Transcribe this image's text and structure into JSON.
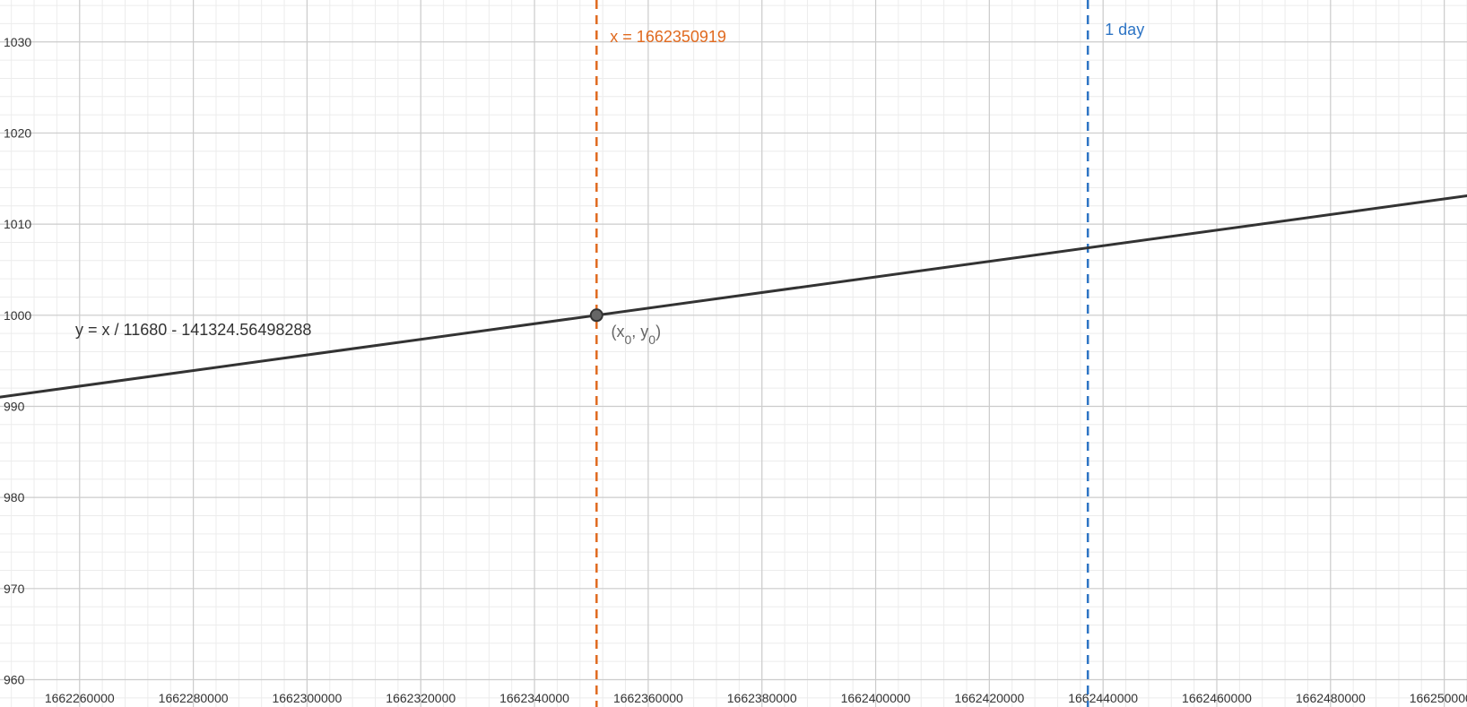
{
  "chart_data": {
    "type": "line",
    "title": "",
    "xlabel": "",
    "ylabel": "",
    "xlim": [
      1662246000,
      1662504000
    ],
    "ylim": [
      957,
      1034.6
    ],
    "grid": true,
    "x_ticks": [
      1662260000,
      1662280000,
      1662300000,
      1662320000,
      1662340000,
      1662360000,
      1662380000,
      1662400000,
      1662420000,
      1662440000,
      1662460000,
      1662480000,
      1662500000
    ],
    "y_ticks": [
      960,
      970,
      980,
      990,
      1000,
      1010,
      1020,
      1030
    ],
    "x_tick_labels": [
      "1662260000",
      "1662280000",
      "1662300000",
      "1662320000",
      "1662340000",
      "1662360000",
      "1662380000",
      "1662400000",
      "1662420000",
      "1662440000",
      "1662460000",
      "1662480000",
      "1662500000"
    ],
    "y_tick_labels": [
      "960",
      "970",
      "980",
      "990",
      "1000",
      "1010",
      "1020",
      "1030"
    ],
    "line": {
      "label": "y = x / 11680 - 141324.56498288",
      "slope_divisor": 11680,
      "intercept": -141324.56498288,
      "color": "#333333"
    },
    "vertical_lines": [
      {
        "x": 1662350919,
        "label": "x = 1662350919",
        "color": "#e06a1f",
        "style": "dashed"
      },
      {
        "x": 1662437319,
        "label": "1 day",
        "color": "#2d74c4",
        "style": "dashed"
      }
    ],
    "point": {
      "x": 1662350919,
      "y": 1000,
      "label_base_x": "x",
      "label_sub_x": "0",
      "label_base_y": "y",
      "label_sub_y": "0"
    }
  }
}
